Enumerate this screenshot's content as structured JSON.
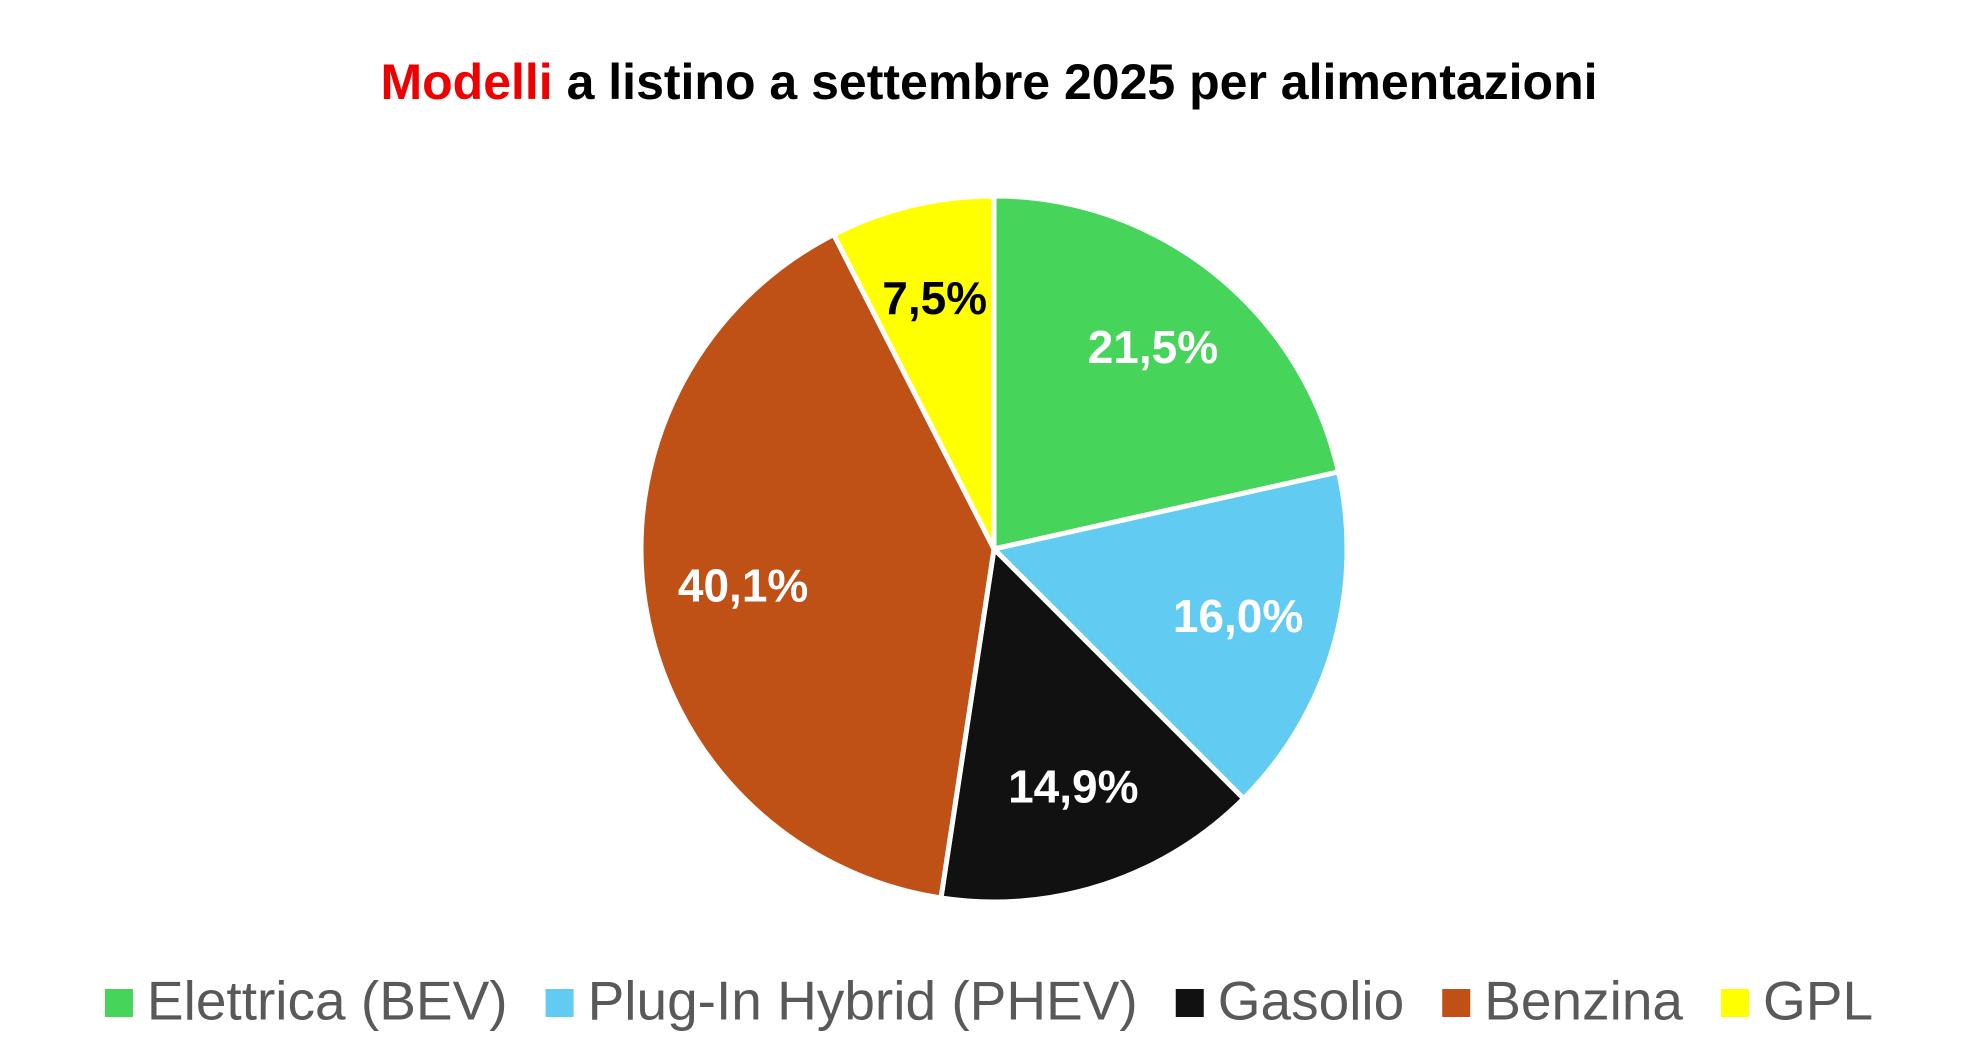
{
  "chart_data": {
    "type": "pie",
    "title": {
      "highlight": "Modelli",
      "rest": "a listino a settembre 2025  per alimentazioni"
    },
    "title_highlight_color": "#ee0000",
    "categories": [
      "Elettrica (BEV)",
      "Plug-In Hybrid (PHEV)",
      "Gasolio",
      "Benzina",
      "GPL"
    ],
    "values": [
      21.5,
      16.0,
      14.9,
      40.1,
      7.5
    ],
    "value_labels": [
      "21,5%",
      "16,0%",
      "14,9%",
      "40,1%",
      "7,5%"
    ],
    "colors": [
      "#47d45a",
      "#62cbf2",
      "#111111",
      "#bf5016",
      "#ffff00"
    ],
    "label_colors": [
      "#ffffff",
      "#ffffff",
      "#ffffff",
      "#ffffff",
      "#000000"
    ],
    "legend": "bottom"
  }
}
